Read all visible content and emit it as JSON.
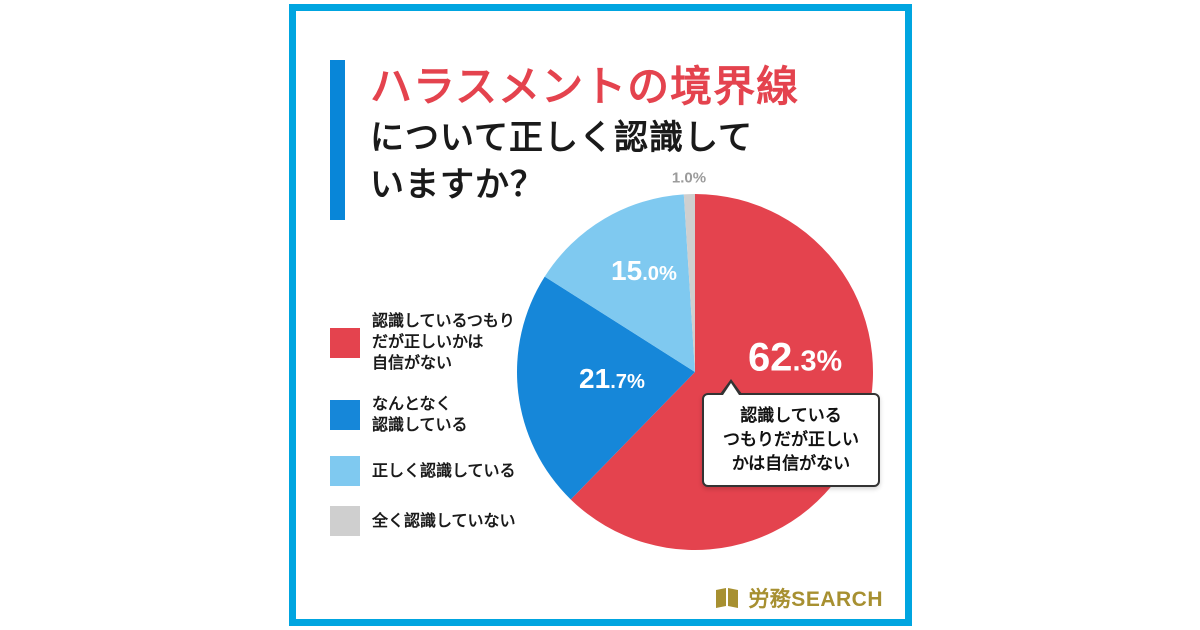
{
  "page": {
    "background": "#ffffff",
    "card_border_color": "#00A5E0",
    "title_accent_color": "#E4434E"
  },
  "title": {
    "line1": "ハラスメントの境界線",
    "line2": "について正しく認識して",
    "line3": "いますか？"
  },
  "chart_data": {
    "type": "pie",
    "title": "ハラスメントの境界線について正しく認識していますか？",
    "start_angle": "12 o'clock, clockwise",
    "legend_position": "left",
    "slices": [
      {
        "label": "認識しているつもりだが正しいかは自信がない",
        "value": 62.3,
        "pct_main": "62",
        "pct_sub": ".3%",
        "color": "#E4434E",
        "legend": [
          "認識しているつもり",
          "だが正しいかは",
          "自信がない"
        ]
      },
      {
        "label": "なんとなく認識している",
        "value": 21.7,
        "pct_main": "21",
        "pct_sub": ".7%",
        "color": "#1687D9",
        "legend": [
          "なんとなく",
          "認識している"
        ]
      },
      {
        "label": "正しく認識している",
        "value": 15.0,
        "pct_main": "15",
        "pct_sub": ".0%",
        "color": "#7FC9F0",
        "legend": [
          "正しく認識している"
        ]
      },
      {
        "label": "全く認識していない",
        "value": 1.0,
        "pct_main": "1",
        "pct_sub": ".0%",
        "color": "#CFCFCF",
        "legend": [
          "全く認識していない"
        ]
      }
    ],
    "callout": {
      "points_to_slice": "62.3%",
      "lines": [
        "認識している",
        "つもりだが正しい",
        "かは自信がない"
      ]
    }
  },
  "footer": {
    "logo_text": "労務SEARCH"
  }
}
